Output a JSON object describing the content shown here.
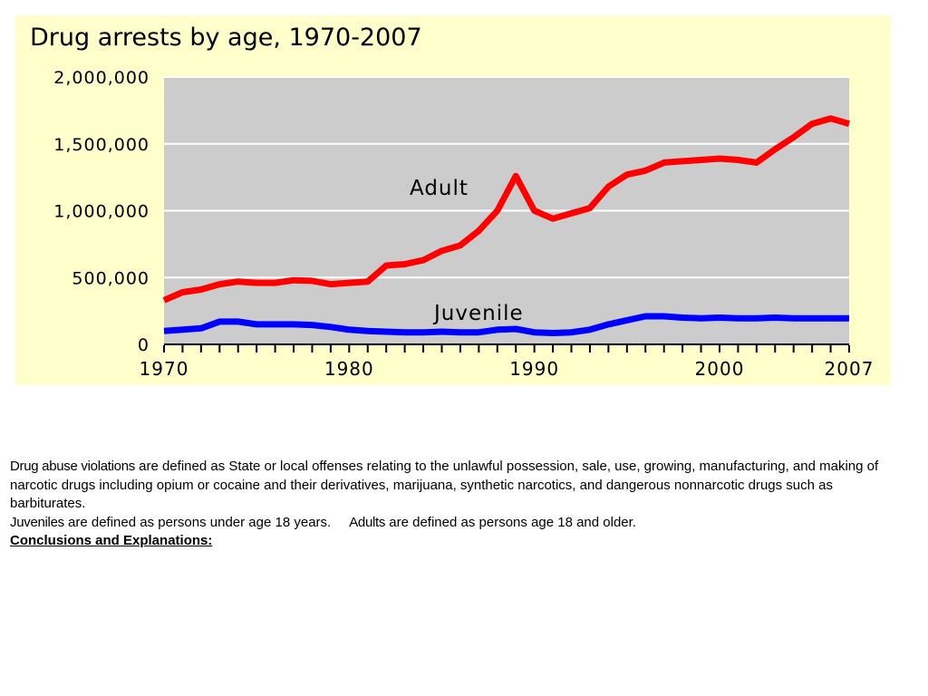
{
  "chart_data": {
    "type": "line",
    "title": "Drug arrests by age, 1970-2007",
    "xlabel": "",
    "ylabel": "",
    "xlim": [
      1970,
      2007
    ],
    "ylim": [
      0,
      2000000
    ],
    "y_ticks": [
      0,
      500000,
      1000000,
      1500000,
      2000000
    ],
    "y_tick_labels": [
      "0",
      "500,000",
      "1,000,000",
      "1,500,000",
      "2,000,000"
    ],
    "x_tick_labels": [
      "1970",
      "1980",
      "1990",
      "2000",
      "2007"
    ],
    "x_tick_values": [
      1970,
      1980,
      1990,
      2000,
      2007
    ],
    "grid": true,
    "legend": "none",
    "colors": {
      "plot_background": "#cccccc",
      "panel_background": "#ffffcc",
      "gridline": "#ffffff",
      "adult": "#ff0000",
      "juvenile": "#0000ff"
    },
    "series": [
      {
        "name": "Adult",
        "color": "#ff0000",
        "x": [
          1970,
          1971,
          1972,
          1973,
          1974,
          1975,
          1976,
          1977,
          1978,
          1979,
          1980,
          1981,
          1982,
          1983,
          1984,
          1985,
          1986,
          1987,
          1988,
          1989,
          1990,
          1991,
          1992,
          1993,
          1994,
          1995,
          1996,
          1997,
          1998,
          1999,
          2000,
          2001,
          2002,
          2003,
          2004,
          2005,
          2006,
          2007
        ],
        "values": [
          330000,
          390000,
          410000,
          450000,
          470000,
          460000,
          460000,
          480000,
          475000,
          450000,
          460000,
          470000,
          590000,
          600000,
          630000,
          700000,
          740000,
          850000,
          1000000,
          1260000,
          1000000,
          940000,
          980000,
          1020000,
          1180000,
          1270000,
          1300000,
          1360000,
          1370000,
          1380000,
          1390000,
          1380000,
          1360000,
          1460000,
          1550000,
          1650000,
          1690000,
          1650000
        ]
      },
      {
        "name": "Juvenile",
        "color": "#0000ff",
        "x": [
          1970,
          1971,
          1972,
          1973,
          1974,
          1975,
          1976,
          1977,
          1978,
          1979,
          1980,
          1981,
          1982,
          1983,
          1984,
          1985,
          1986,
          1987,
          1988,
          1989,
          1990,
          1991,
          1992,
          1993,
          1994,
          1995,
          1996,
          1997,
          1998,
          1999,
          2000,
          2001,
          2002,
          2003,
          2004,
          2005,
          2006,
          2007
        ],
        "values": [
          100000,
          110000,
          120000,
          170000,
          170000,
          150000,
          150000,
          150000,
          145000,
          130000,
          110000,
          100000,
          95000,
          90000,
          90000,
          95000,
          90000,
          90000,
          110000,
          115000,
          90000,
          85000,
          90000,
          110000,
          150000,
          180000,
          210000,
          210000,
          200000,
          195000,
          200000,
          195000,
          195000,
          200000,
          195000,
          195000,
          195000,
          195000
        ]
      }
    ]
  },
  "definitions": {
    "line1": {
      "term": "Drug abuse violations",
      "text": " are defined as State or local offenses relating to the unlawful possession, sale, use, growing, manufacturing, and making of narcotic drugs including opium or cocaine and their derivatives, marijuana, synthetic narcotics, and dangerous nonnarcotic drugs such as barbiturates."
    },
    "line2": {
      "term_juveniles": "Juveniles",
      "text_juveniles": " are defined as persons under age 18 years.",
      "term_adults": "Adults",
      "text_adults": " are defined as persons age 18 and older."
    },
    "conclusions_heading": "Conclusions and Explanations:"
  }
}
